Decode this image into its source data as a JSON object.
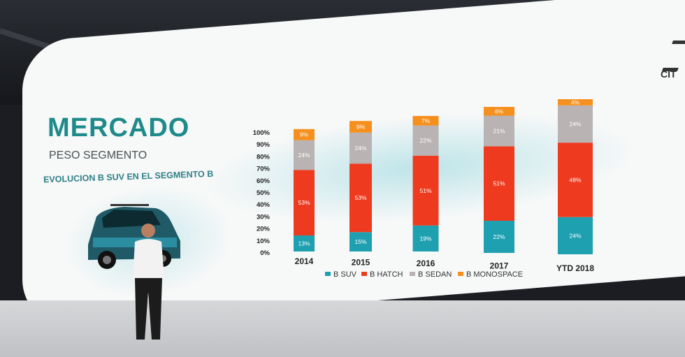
{
  "slide": {
    "title": "MERCADO",
    "subtitle": "PESO SEGMENTO",
    "heading": "EVOLUCION B SUV EN EL SEGMENTO B",
    "brand": "CIT"
  },
  "colors": {
    "b_suv": "#1fa0b0",
    "b_hatch": "#ee3b1f",
    "b_sedan": "#b9b3b3",
    "b_monospace": "#f5901e"
  },
  "chart_data": {
    "type": "bar",
    "stacked": true,
    "categories": [
      "2014",
      "2015",
      "2016",
      "2017",
      "YTD 2018"
    ],
    "series": [
      {
        "name": "B SUV",
        "values": [
          13,
          15,
          19,
          22,
          24
        ]
      },
      {
        "name": "B HATCH",
        "values": [
          53,
          53,
          51,
          51,
          48
        ]
      },
      {
        "name": "B SEDAN",
        "values": [
          24,
          24,
          22,
          21,
          24
        ]
      },
      {
        "name": "B MONOSPACE",
        "values": [
          9,
          9,
          7,
          6,
          4
        ]
      }
    ],
    "yticks": [
      "0%",
      "10%",
      "20%",
      "30%",
      "40%",
      "50%",
      "60%",
      "70%",
      "80%",
      "90%",
      "100%"
    ],
    "ylim": [
      0,
      100
    ],
    "legend": "bottom"
  }
}
